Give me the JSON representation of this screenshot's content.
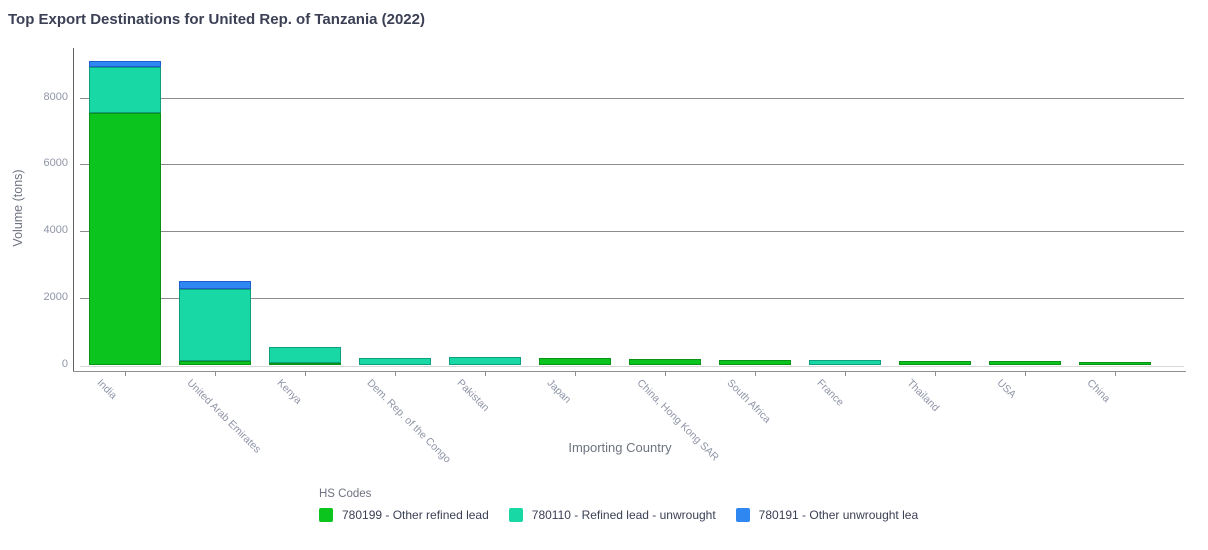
{
  "chart_data": {
    "type": "bar",
    "stacked": true,
    "title": "Top Export Destinations for United Rep. of Tanzania (2022)",
    "xlabel": "Importing Country",
    "ylabel": "Volume (tons)",
    "legend_title": "HS Codes",
    "legend_position": "bottom",
    "grid": true,
    "ylim": [
      0,
      9300
    ],
    "yticks": [
      0,
      2000,
      4000,
      6000,
      8000
    ],
    "categories": [
      "India",
      "United Arab Emirates",
      "Kenya",
      "Dem. Rep. of the Congo",
      "Pakistan",
      "Japan",
      "China, Hong Kong SAR",
      "South Africa",
      "France",
      "Thailand",
      "USA",
      "China"
    ],
    "series": [
      {
        "name": "780199 - Other refined lead",
        "color": "#0bc41e",
        "stroke": "#099417",
        "values": [
          7530,
          130,
          60,
          0,
          0,
          195,
          180,
          135,
          0,
          115,
          105,
          90
        ]
      },
      {
        "name": "780110 - Refined lead - unwrought",
        "color": "#18d8a6",
        "stroke": "#0f9e7d",
        "values": [
          1400,
          2130,
          470,
          200,
          225,
          0,
          0,
          0,
          135,
          0,
          0,
          0
        ]
      },
      {
        "name": "780191 - Other unwrought lea",
        "color": "#2f87f1",
        "stroke": "#1d5ed0",
        "values": [
          170,
          250,
          0,
          0,
          0,
          0,
          0,
          0,
          0,
          0,
          0,
          0
        ]
      }
    ]
  }
}
